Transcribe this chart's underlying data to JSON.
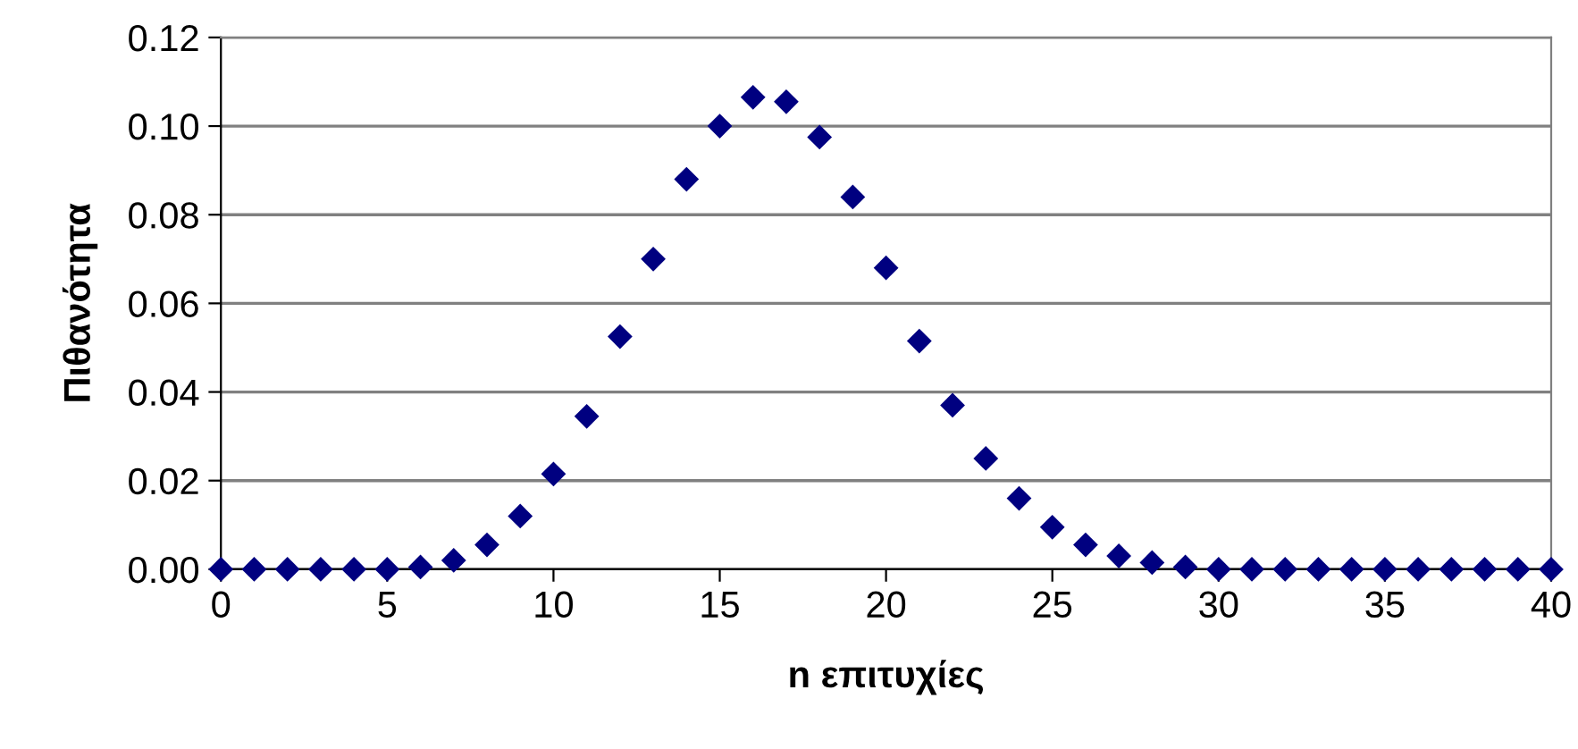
{
  "chart_data": {
    "type": "scatter",
    "xlabel": "n επιτυχίες",
    "ylabel": "Πιθανότητα",
    "x": [
      0,
      1,
      2,
      3,
      4,
      5,
      6,
      7,
      8,
      9,
      10,
      11,
      12,
      13,
      14,
      15,
      16,
      17,
      18,
      19,
      20,
      21,
      22,
      23,
      24,
      25,
      26,
      27,
      28,
      29,
      30,
      31,
      32,
      33,
      34,
      35,
      36,
      37,
      38,
      39,
      40
    ],
    "series": [
      {
        "color": "#000080",
        "values": [
          0,
          0,
          0,
          0,
          0,
          0,
          0.0005,
          0.002,
          0.0055,
          0.012,
          0.0215,
          0.0345,
          0.0525,
          0.07,
          0.088,
          0.1,
          0.1065,
          0.1055,
          0.0975,
          0.084,
          0.068,
          0.0515,
          0.037,
          0.025,
          0.016,
          0.0095,
          0.0055,
          0.003,
          0.0015,
          0.0005,
          0,
          0,
          0,
          0,
          0,
          0,
          0,
          0,
          0,
          0,
          0
        ]
      }
    ],
    "xlim": [
      0,
      40
    ],
    "xticks": [
      0,
      5,
      10,
      15,
      20,
      25,
      30,
      35,
      40
    ],
    "ylim": [
      0,
      0.12
    ],
    "yticks": [
      {
        "value": 0,
        "label": "0.00"
      },
      {
        "value": 0.02,
        "label": "0.02"
      },
      {
        "value": 0.04,
        "label": "0.04"
      },
      {
        "value": 0.06,
        "label": "0.06"
      },
      {
        "value": 0.08,
        "label": "0.08"
      },
      {
        "value": 0.1,
        "label": "0.10"
      },
      {
        "value": 0.12,
        "label": "0.12"
      }
    ],
    "grid": "y",
    "marker": "diamond"
  }
}
